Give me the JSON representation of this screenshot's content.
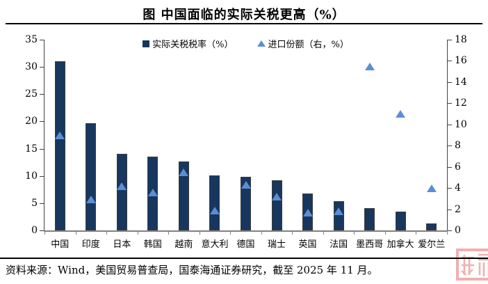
{
  "title": "图  中国面临的实际关税更高（%）",
  "legend": [
    {
      "label": "实际关税税率（%）",
      "marker": "square",
      "color": "#17375E"
    },
    {
      "label": "进口份额（右，%）",
      "marker": "triangle",
      "color": "#5B8FD4"
    }
  ],
  "chart_data": {
    "type": "bar",
    "title": "图  中国面临的实际关税更高（%）",
    "categories": [
      "中国",
      "印度",
      "日本",
      "韩国",
      "越南",
      "意大利",
      "德国",
      "瑞士",
      "英国",
      "法国",
      "墨西哥",
      "加拿大",
      "爱尔兰"
    ],
    "series": [
      {
        "name": "实际关税税率（%）",
        "type": "bar",
        "axis": "left",
        "color": "#17375E",
        "values": [
          31.0,
          19.7,
          14.0,
          13.6,
          12.7,
          10.1,
          9.8,
          9.2,
          6.8,
          5.4,
          4.1,
          3.5,
          1.3
        ]
      },
      {
        "name": "进口份额（右，%）",
        "type": "scatter",
        "marker": "triangle",
        "axis": "right",
        "color": "#5B8FD4",
        "values": [
          9.0,
          2.9,
          4.2,
          3.6,
          5.5,
          1.9,
          4.3,
          3.2,
          1.7,
          1.8,
          15.5,
          11.0,
          4.0
        ]
      }
    ],
    "left_axis": {
      "min": 0,
      "max": 35,
      "ticks": [
        0,
        5,
        10,
        15,
        20,
        25,
        30,
        35
      ]
    },
    "right_axis": {
      "min": 0,
      "max": 18,
      "ticks": [
        0,
        2,
        4,
        6,
        8,
        10,
        12,
        14,
        16,
        18
      ]
    },
    "grid": false,
    "legend_position": "top-center"
  },
  "footer": {
    "source_text": "资料来源：Wind，美国贸易普查局，国泰海通证券研究，截至 2025 年 11 月。"
  },
  "watermark": {
    "type": "seal",
    "color": "#F2AFAF"
  }
}
